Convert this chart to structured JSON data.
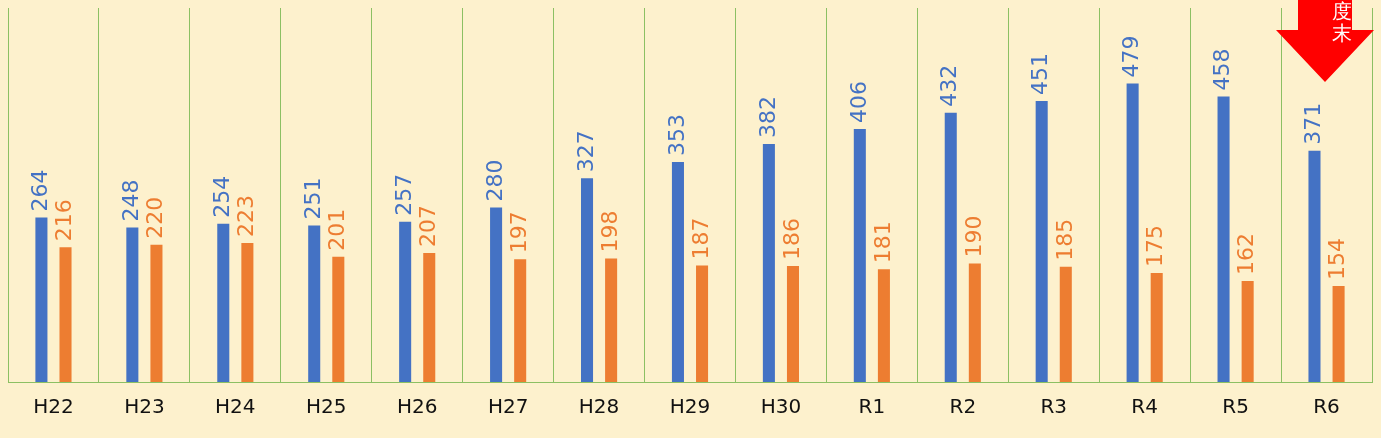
{
  "chart_data": {
    "type": "bar",
    "categories": [
      "H22",
      "H23",
      "H24",
      "H25",
      "H26",
      "H27",
      "H28",
      "H29",
      "H30",
      "R1",
      "R2",
      "R3",
      "R4",
      "R5",
      "R6"
    ],
    "series": [
      {
        "color": "#4472c4",
        "values": [
          264,
          248,
          254,
          251,
          257,
          280,
          327,
          353,
          382,
          406,
          432,
          451,
          479,
          458,
          371
        ]
      },
      {
        "color": "#ed7d31",
        "values": [
          216,
          220,
          223,
          201,
          207,
          197,
          198,
          187,
          186,
          181,
          190,
          185,
          175,
          162,
          154
        ]
      }
    ],
    "ylim": [
      0,
      600
    ],
    "data_labels": true,
    "grid": "x",
    "legend": false,
    "annotations": [
      "度末"
    ]
  }
}
